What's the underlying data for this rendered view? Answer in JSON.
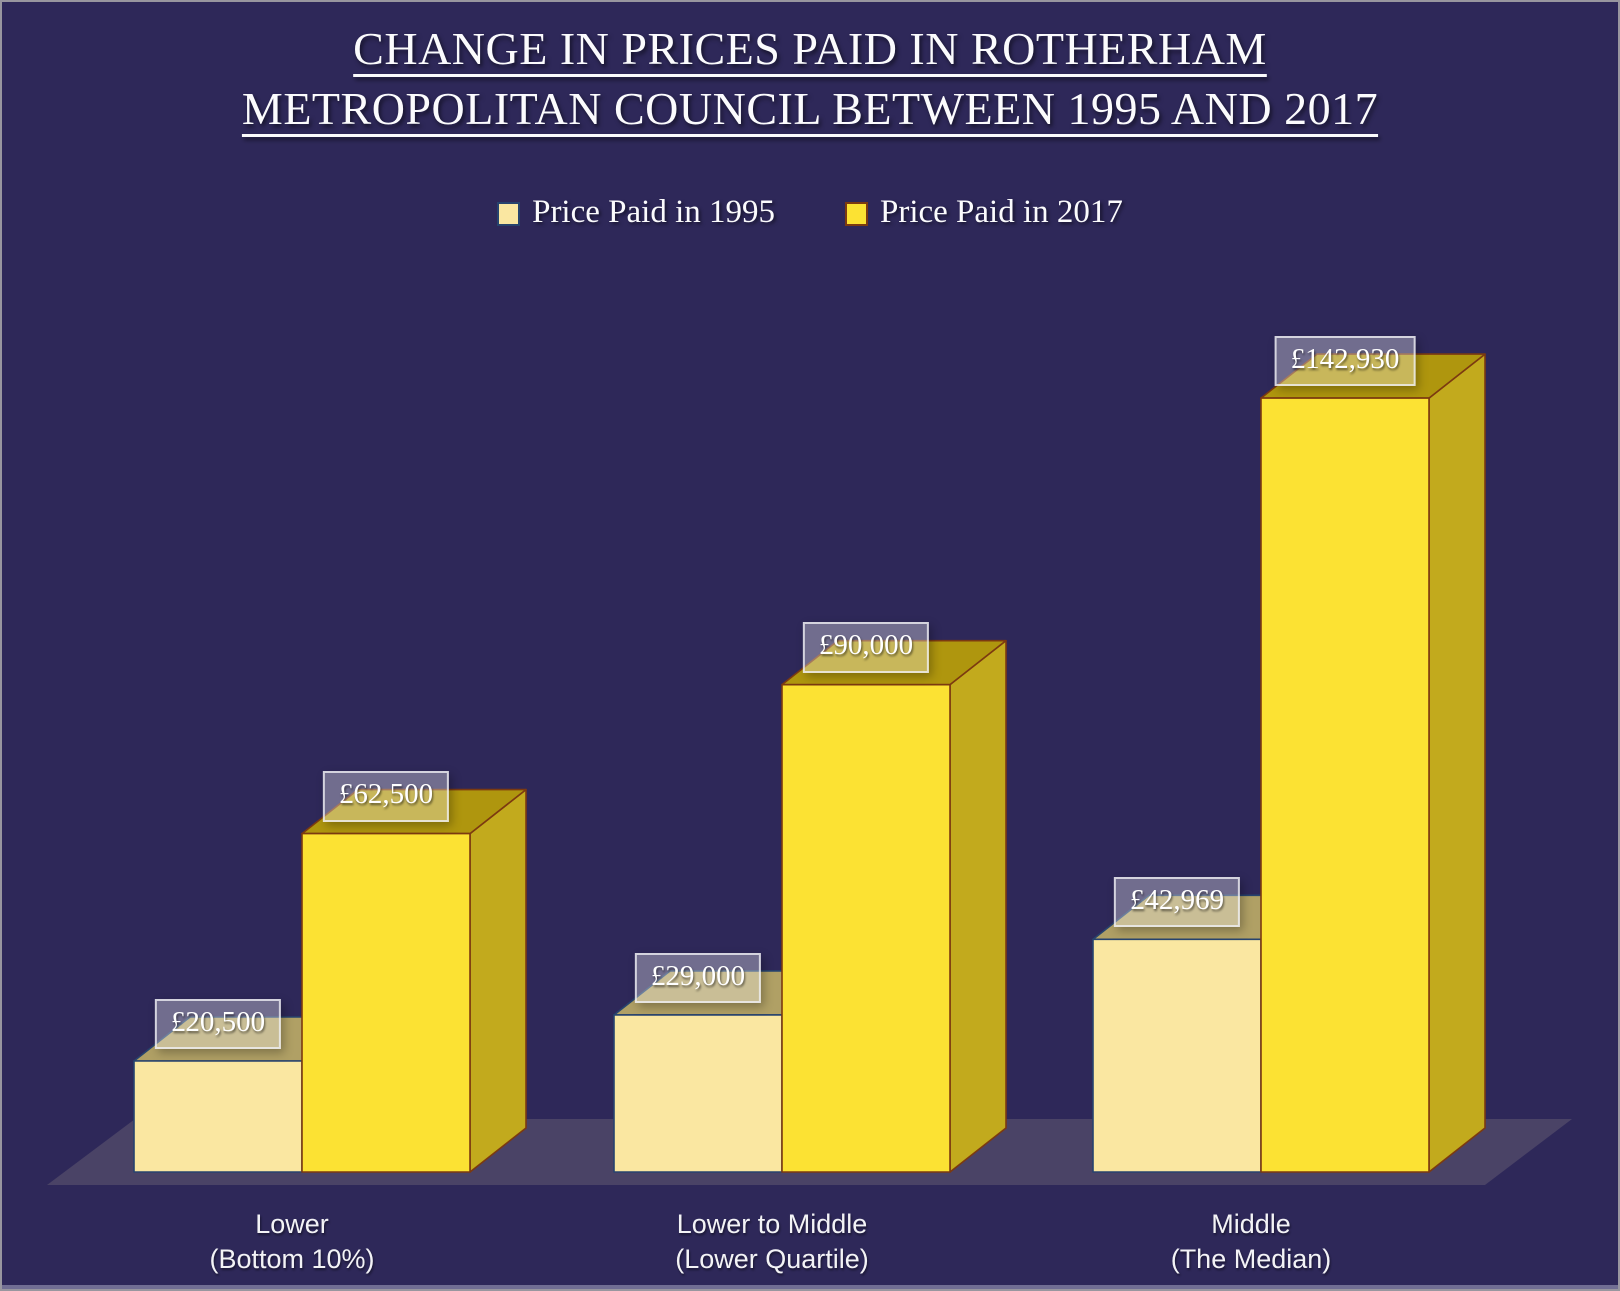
{
  "title": {
    "line1": "CHANGE IN PRICES PAID IN ROTHERHAM",
    "line2": "METROPOLITAN COUNCIL BETWEEN 1995 AND 2017"
  },
  "chart_data": {
    "type": "bar",
    "projection": "3d-oblique",
    "title": "CHANGE IN PRICES PAID IN ROTHERHAM METROPOLITAN COUNCIL BETWEEN 1995 AND 2017",
    "categories": [
      "Lower\n(Bottom 10%)",
      "Lower to Middle\n(Lower Quartile)",
      "Middle\n(The Median)"
    ],
    "series": [
      {
        "name": "Price Paid in 1995",
        "values": [
          20500,
          29000,
          42969
        ],
        "value_labels": [
          "£20,500",
          "£29,000",
          "£42,969"
        ],
        "color_front": "#FAE7A1",
        "color_top": "#B0A065",
        "color_side": "#E3D28C",
        "color_outline": "#27436E"
      },
      {
        "name": "Price Paid in 2017",
        "values": [
          62500,
          90000,
          142930
        ],
        "value_labels": [
          "£62,500",
          "£90,000",
          "£142,930"
        ],
        "color_front": "#FCE233",
        "color_top": "#AF960E",
        "color_side": "#C2AA1D",
        "color_outline": "#7C3A10"
      }
    ],
    "xlabel": "",
    "ylabel": "",
    "value_prefix": "£",
    "axes_shown": false,
    "gridlines": false,
    "value_labels_shown": true,
    "legend_position": "top-center"
  },
  "colors": {
    "background": "#2E2859",
    "floor": "#4A4366",
    "text": "#FBFBFD",
    "value_label_box_fill": "rgba(255,255,255,0.32)",
    "value_label_box_border": "rgba(240,240,245,0.78)"
  }
}
